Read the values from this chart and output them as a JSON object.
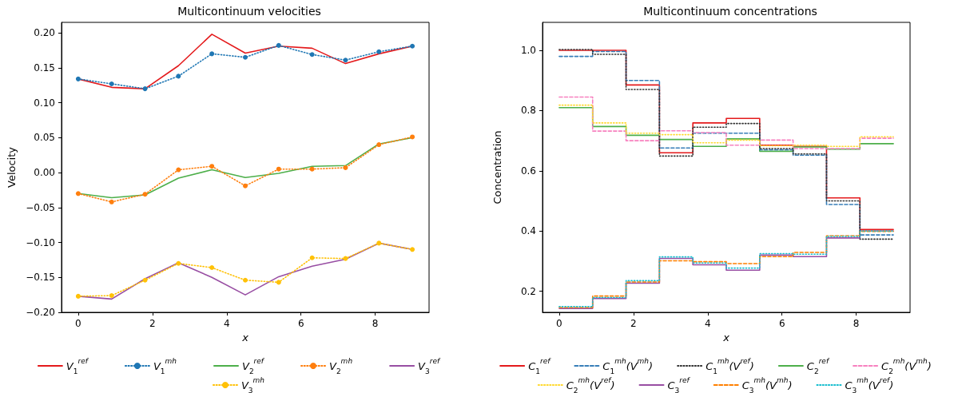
{
  "chart_data": [
    {
      "type": "line",
      "title": "Multicontinuum velocities",
      "xlabel": "x",
      "ylabel": "Velocity",
      "x": [
        0,
        0.9,
        1.8,
        2.7,
        3.6,
        4.5,
        5.4,
        6.3,
        7.2,
        8.1,
        9.0
      ],
      "xlim": [
        -0.45,
        9.45
      ],
      "xticks": [
        0,
        2,
        4,
        6,
        8
      ],
      "ylim": [
        -0.2,
        0.215
      ],
      "yticks": [
        {
          "value": -0.2,
          "label": "−0.20"
        },
        {
          "value": -0.15,
          "label": "−0.15"
        },
        {
          "value": -0.1,
          "label": "−0.10"
        },
        {
          "value": -0.05,
          "label": "−0.05"
        },
        {
          "value": 0,
          "label": "0.00"
        },
        {
          "value": 0.05,
          "label": "0.05"
        },
        {
          "value": 0.1,
          "label": "0.10"
        },
        {
          "value": 0.15,
          "label": "0.15"
        },
        {
          "value": 0.2,
          "label": "0.20"
        }
      ],
      "grid": false,
      "legend": "bottom",
      "series": [
        {
          "name": "V$_{1}$$^{ref}$",
          "color": "#e41a1c",
          "marker": "none",
          "line_style": "solid",
          "values": [
            0.134,
            0.122,
            0.12,
            0.153,
            0.198,
            0.171,
            0.181,
            0.178,
            0.156,
            0.17,
            0.181
          ]
        },
        {
          "name": "V$_{1}$$^{mh}$",
          "color": "#1f77b4",
          "marker": "circle",
          "line_style": "dotted",
          "values": [
            0.134,
            0.127,
            0.12,
            0.138,
            0.17,
            0.165,
            0.182,
            0.169,
            0.161,
            0.173,
            0.181
          ]
        },
        {
          "name": "V$_{2}$$^{ref}$",
          "color": "#4daf4a",
          "marker": "none",
          "line_style": "solid",
          "values": [
            -0.03,
            -0.036,
            -0.032,
            -0.008,
            0.004,
            -0.007,
            -0.001,
            0.009,
            0.01,
            0.041,
            0.05
          ]
        },
        {
          "name": "V$_{2}$$^{mh}$",
          "color": "#ff7f0e",
          "marker": "circle",
          "line_style": "dotted",
          "values": [
            -0.03,
            -0.042,
            -0.031,
            0.004,
            0.009,
            -0.019,
            0.005,
            0.005,
            0.007,
            0.04,
            0.051
          ]
        },
        {
          "name": "V$_{3}$$^{ref}$",
          "color": "#984ea3",
          "marker": "none",
          "line_style": "solid",
          "values": [
            -0.177,
            -0.181,
            -0.152,
            -0.129,
            -0.15,
            -0.175,
            -0.149,
            -0.134,
            -0.124,
            -0.101,
            -0.11
          ]
        },
        {
          "name": "V$_{3}$$^{mh}$",
          "color": "#ffc107",
          "marker": "circle",
          "line_style": "dotted",
          "values": [
            -0.177,
            -0.176,
            -0.154,
            -0.13,
            -0.136,
            -0.154,
            -0.157,
            -0.122,
            -0.123,
            -0.101,
            -0.11
          ]
        }
      ]
    },
    {
      "type": "step",
      "title": "Multicontinuum concentrations",
      "xlabel": "x",
      "ylabel": "Concentration",
      "x": [
        0,
        0.9,
        1.8,
        2.7,
        3.6,
        4.5,
        5.4,
        6.3,
        7.2,
        8.1,
        9.0
      ],
      "xlim": [
        -0.45,
        9.45
      ],
      "xticks": [
        0,
        2,
        4,
        6,
        8
      ],
      "ylim": [
        0.13,
        1.093
      ],
      "yticks": [
        {
          "value": 0.2,
          "label": "0.2"
        },
        {
          "value": 0.4,
          "label": "0.4"
        },
        {
          "value": 0.6,
          "label": "0.6"
        },
        {
          "value": 0.8,
          "label": "0.8"
        },
        {
          "value": 1.0,
          "label": "1.0"
        }
      ],
      "grid": false,
      "legend": "bottom",
      "series": [
        {
          "name": "C$_{1}$$^{ref}$",
          "color": "#e41a1c",
          "line_style": "solid",
          "values": [
            1.0,
            1.0,
            0.885,
            0.66,
            0.759,
            0.774,
            0.685,
            0.681,
            0.51,
            0.405,
            0.405
          ]
        },
        {
          "name": "C$_{1}$$^{mh}$(V$^{mh}$)",
          "color": "#377eb8",
          "line_style": "dashed",
          "values": [
            0.98,
            0.996,
            0.9,
            0.676,
            0.725,
            0.725,
            0.67,
            0.652,
            0.488,
            0.387,
            0.387
          ]
        },
        {
          "name": "C$_{1}$$^{mh}$(V$^{ref}$)",
          "color": "#333333",
          "line_style": "dotted",
          "values": [
            1.003,
            0.987,
            0.87,
            0.649,
            0.745,
            0.757,
            0.674,
            0.656,
            0.5,
            0.373,
            0.373
          ]
        },
        {
          "name": "C$_{2}$$^{ref}$",
          "color": "#4daf4a",
          "line_style": "solid",
          "values": [
            0.81,
            0.747,
            0.718,
            0.704,
            0.681,
            0.706,
            0.665,
            0.679,
            0.672,
            0.69,
            0.69
          ]
        },
        {
          "name": "C$_{2}$$^{mh}$(V$^{mh}$)",
          "color": "#f781bf",
          "line_style": "dashed",
          "values": [
            0.845,
            0.732,
            0.7,
            0.733,
            0.727,
            0.685,
            0.702,
            0.674,
            0.674,
            0.708,
            0.708
          ]
        },
        {
          "name": "C$_{2}$$^{mh}$(V$^{ref}$)",
          "color": "#ffd92f",
          "line_style": "dotted",
          "values": [
            0.818,
            0.759,
            0.725,
            0.72,
            0.693,
            0.702,
            0.683,
            0.685,
            0.681,
            0.713,
            0.713
          ]
        },
        {
          "name": "C$_{3}$$^{ref}$",
          "color": "#984ea3",
          "line_style": "solid",
          "values": [
            0.143,
            0.176,
            0.227,
            0.309,
            0.288,
            0.27,
            0.32,
            0.315,
            0.377,
            0.4,
            0.4
          ]
        },
        {
          "name": "C$_{3}$$^{mh}$(V$^{mh}$)",
          "color": "#ff7f00",
          "line_style": "dashed",
          "values": [
            0.146,
            0.184,
            0.231,
            0.301,
            0.298,
            0.292,
            0.315,
            0.329,
            0.384,
            0.399,
            0.399
          ]
        },
        {
          "name": "C$_{3}$$^{mh}$(V$^{ref}$)",
          "color": "#17becf",
          "line_style": "dotted",
          "values": [
            0.149,
            0.179,
            0.235,
            0.314,
            0.294,
            0.277,
            0.325,
            0.323,
            0.382,
            0.4,
            0.4
          ]
        }
      ]
    }
  ]
}
